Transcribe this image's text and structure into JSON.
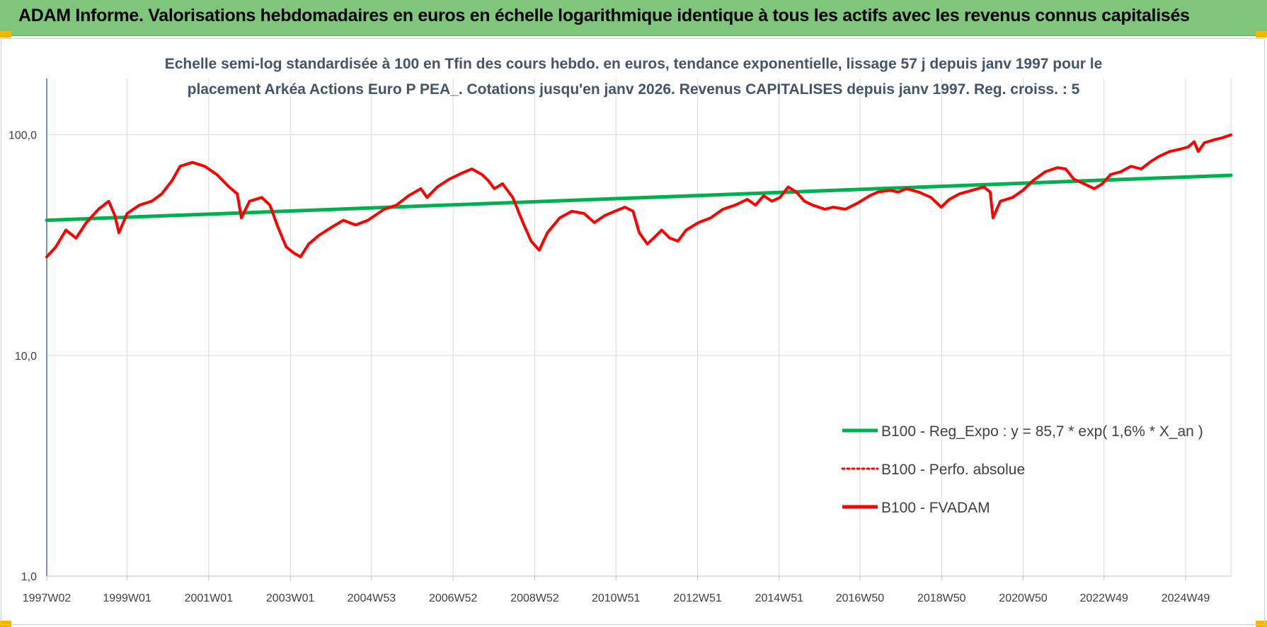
{
  "header": {
    "title": "ADAM Informe. Valorisations hebdomadaires en euros en échelle logarithmique identique à tous les actifs avec les revenus connus capitalisés"
  },
  "chart_data": {
    "type": "line",
    "title_lines": [
      "Echelle semi-log standardisée à 100 en Tfin des cours hebdo. en euros, tendance exponentielle, lissage 57 j depuis janv 1997 pour le",
      "placement Arkéa Actions Euro P PEA_. Cotations jusqu'en janv 2026. Revenus CAPITALISES depuis janv 1997. Reg. croiss. : 5"
    ],
    "y_scale": "log",
    "ylim": [
      1,
      180
    ],
    "y_ticks": [
      {
        "value": 1,
        "label": "1,0"
      },
      {
        "value": 10,
        "label": "10,0"
      },
      {
        "value": 100,
        "label": "100,0"
      }
    ],
    "x_range": [
      1997.03,
      2026.05
    ],
    "x_ticks": [
      {
        "x": 1997.03,
        "label": "1997W02"
      },
      {
        "x": 1999.0,
        "label": "1999W01"
      },
      {
        "x": 2001.0,
        "label": "2001W01"
      },
      {
        "x": 2003.0,
        "label": "2003W01"
      },
      {
        "x": 2004.99,
        "label": "2004W53"
      },
      {
        "x": 2006.99,
        "label": "2006W52"
      },
      {
        "x": 2008.99,
        "label": "2008W52"
      },
      {
        "x": 2010.98,
        "label": "2010W51"
      },
      {
        "x": 2012.98,
        "label": "2012W51"
      },
      {
        "x": 2014.98,
        "label": "2014W51"
      },
      {
        "x": 2016.96,
        "label": "2016W50"
      },
      {
        "x": 2018.96,
        "label": "2018W50"
      },
      {
        "x": 2020.96,
        "label": "2020W50"
      },
      {
        "x": 2022.94,
        "label": "2022W49"
      },
      {
        "x": 2024.94,
        "label": "2024W49"
      }
    ],
    "legend_position": "bottom-right",
    "grid": {
      "vertical": true,
      "horizontal": true
    },
    "series": [
      {
        "name": "B100 - Reg_Expo : y = 85,7 * exp( 1,6% *  X_an )",
        "style": "solid",
        "color": "#00b050",
        "width": 5,
        "points": [
          [
            1997.03,
            41
          ],
          [
            2026.05,
            65.5
          ]
        ]
      },
      {
        "name": "B100 - Perfo. absolue",
        "style": "dotted",
        "color": "#ff0000",
        "width": 3,
        "points": []
      },
      {
        "name": "B100 - FVADAM",
        "style": "solid",
        "color": "#ff0000",
        "width": 4,
        "points": [
          [
            1997.03,
            28
          ],
          [
            1997.25,
            31
          ],
          [
            1997.5,
            37
          ],
          [
            1997.75,
            34
          ],
          [
            1998.0,
            40
          ],
          [
            1998.3,
            46
          ],
          [
            1998.55,
            50
          ],
          [
            1998.7,
            43
          ],
          [
            1998.8,
            36
          ],
          [
            1999.0,
            44
          ],
          [
            1999.3,
            48
          ],
          [
            1999.6,
            50
          ],
          [
            1999.85,
            54
          ],
          [
            2000.1,
            62
          ],
          [
            2000.3,
            72
          ],
          [
            2000.6,
            75
          ],
          [
            2000.9,
            72
          ],
          [
            2001.2,
            66
          ],
          [
            2001.5,
            58
          ],
          [
            2001.7,
            54
          ],
          [
            2001.8,
            42
          ],
          [
            2002.0,
            50
          ],
          [
            2002.3,
            52
          ],
          [
            2002.5,
            48
          ],
          [
            2002.7,
            38
          ],
          [
            2002.9,
            31
          ],
          [
            2003.1,
            29
          ],
          [
            2003.25,
            28
          ],
          [
            2003.45,
            32
          ],
          [
            2003.7,
            35
          ],
          [
            2004.0,
            38
          ],
          [
            2004.3,
            41
          ],
          [
            2004.6,
            39
          ],
          [
            2004.9,
            41
          ],
          [
            2005.3,
            46
          ],
          [
            2005.6,
            48
          ],
          [
            2005.9,
            53
          ],
          [
            2006.2,
            57
          ],
          [
            2006.35,
            52
          ],
          [
            2006.6,
            58
          ],
          [
            2006.9,
            63
          ],
          [
            2007.2,
            67
          ],
          [
            2007.45,
            70
          ],
          [
            2007.7,
            66
          ],
          [
            2007.85,
            62
          ],
          [
            2008.0,
            57
          ],
          [
            2008.2,
            60
          ],
          [
            2008.45,
            52
          ],
          [
            2008.7,
            40
          ],
          [
            2008.9,
            33
          ],
          [
            2009.1,
            30
          ],
          [
            2009.3,
            36
          ],
          [
            2009.6,
            42
          ],
          [
            2009.9,
            45
          ],
          [
            2010.2,
            44
          ],
          [
            2010.45,
            40
          ],
          [
            2010.7,
            43
          ],
          [
            2010.95,
            45
          ],
          [
            2011.2,
            47
          ],
          [
            2011.4,
            45
          ],
          [
            2011.55,
            36
          ],
          [
            2011.75,
            32
          ],
          [
            2011.9,
            34
          ],
          [
            2012.1,
            37
          ],
          [
            2012.3,
            34
          ],
          [
            2012.5,
            33
          ],
          [
            2012.7,
            37
          ],
          [
            2013.0,
            40
          ],
          [
            2013.3,
            42
          ],
          [
            2013.6,
            46
          ],
          [
            2013.9,
            48
          ],
          [
            2014.2,
            51
          ],
          [
            2014.4,
            48
          ],
          [
            2014.6,
            53
          ],
          [
            2014.8,
            50
          ],
          [
            2015.0,
            52
          ],
          [
            2015.2,
            58
          ],
          [
            2015.4,
            55
          ],
          [
            2015.6,
            50
          ],
          [
            2015.8,
            48
          ],
          [
            2016.1,
            46
          ],
          [
            2016.3,
            47
          ],
          [
            2016.6,
            46
          ],
          [
            2016.9,
            49
          ],
          [
            2017.2,
            53
          ],
          [
            2017.4,
            55
          ],
          [
            2017.7,
            56
          ],
          [
            2017.9,
            55
          ],
          [
            2018.1,
            57
          ],
          [
            2018.4,
            55
          ],
          [
            2018.7,
            52
          ],
          [
            2018.95,
            47
          ],
          [
            2019.15,
            51
          ],
          [
            2019.4,
            54
          ],
          [
            2019.7,
            56
          ],
          [
            2020.0,
            58
          ],
          [
            2020.15,
            55
          ],
          [
            2020.22,
            42
          ],
          [
            2020.4,
            50
          ],
          [
            2020.7,
            52
          ],
          [
            2020.95,
            56
          ],
          [
            2021.2,
            62
          ],
          [
            2021.5,
            68
          ],
          [
            2021.8,
            71
          ],
          [
            2022.0,
            70
          ],
          [
            2022.2,
            63
          ],
          [
            2022.45,
            60
          ],
          [
            2022.7,
            57
          ],
          [
            2022.9,
            60
          ],
          [
            2023.1,
            66
          ],
          [
            2023.35,
            68
          ],
          [
            2023.6,
            72
          ],
          [
            2023.85,
            70
          ],
          [
            2024.1,
            76
          ],
          [
            2024.3,
            80
          ],
          [
            2024.55,
            84
          ],
          [
            2024.8,
            86
          ],
          [
            2025.0,
            88
          ],
          [
            2025.15,
            93
          ],
          [
            2025.25,
            84
          ],
          [
            2025.4,
            92
          ],
          [
            2025.65,
            95
          ],
          [
            2025.85,
            97
          ],
          [
            2026.05,
            100
          ]
        ]
      }
    ]
  }
}
